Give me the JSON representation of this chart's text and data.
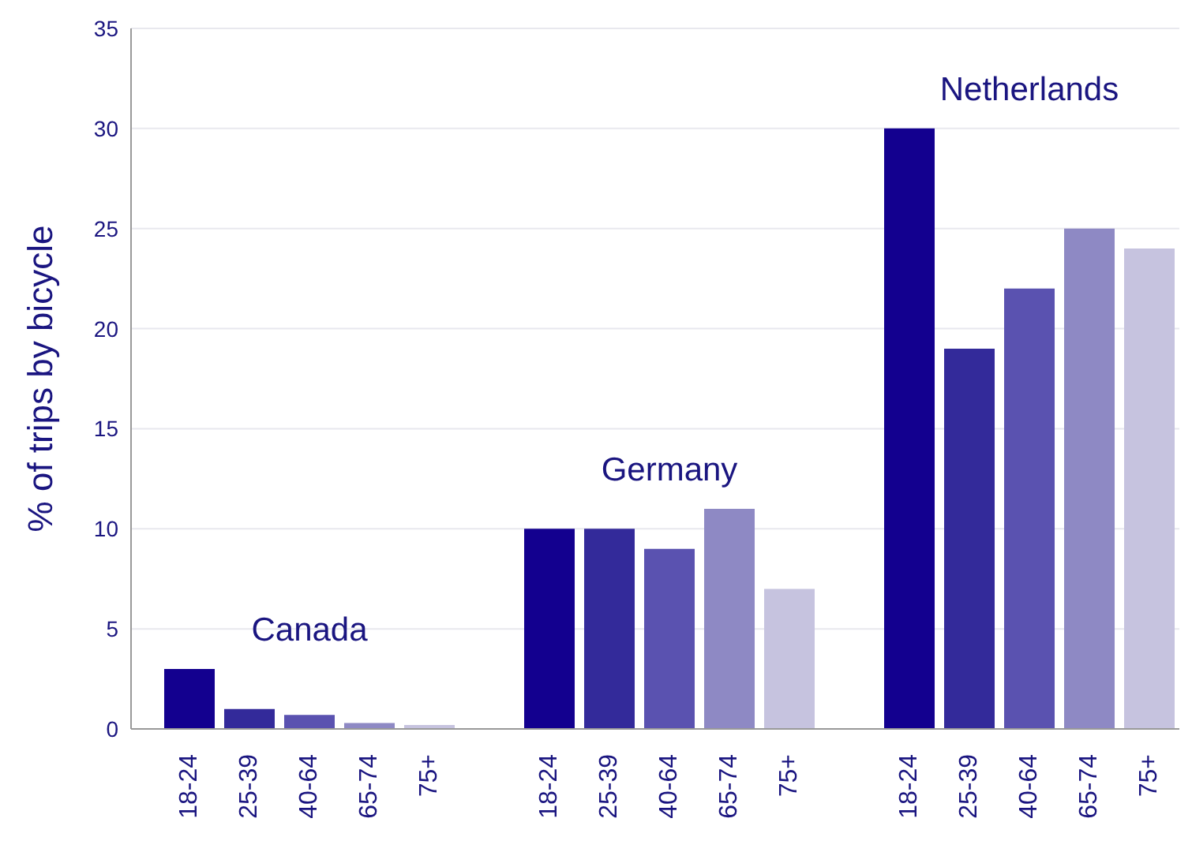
{
  "chart_data": {
    "type": "bar",
    "ylabel": "% of trips by bicycle",
    "categories": [
      "18-24",
      "25-39",
      "40-64",
      "65-74",
      "75+",
      null,
      "18-24",
      "25-39",
      "40-64",
      "65-74",
      "75+",
      null,
      "18-24",
      "25-39",
      "40-64",
      "65-74",
      "75+"
    ],
    "values": [
      3,
      1,
      0.7,
      0.3,
      0.2,
      null,
      10,
      10,
      9,
      11,
      7,
      null,
      30,
      19,
      22,
      25,
      24
    ],
    "colors": [
      "#13008f",
      "#332a9a",
      "#5a52b0",
      "#8e89c4",
      "#c6c3df",
      "#ffffff",
      "#13008f",
      "#332a9a",
      "#5a52b0",
      "#8e89c4",
      "#c6c3df",
      "#ffffff",
      "#13008f",
      "#332a9a",
      "#5a52b0",
      "#8e89c4",
      "#c6c3df"
    ],
    "annotations": [
      "Canada",
      "Germany",
      "Netherlands"
    ],
    "ylim": [
      0,
      35
    ],
    "yticks": [
      0,
      5,
      10,
      15,
      20,
      25,
      30,
      35
    ],
    "grid": "y"
  }
}
